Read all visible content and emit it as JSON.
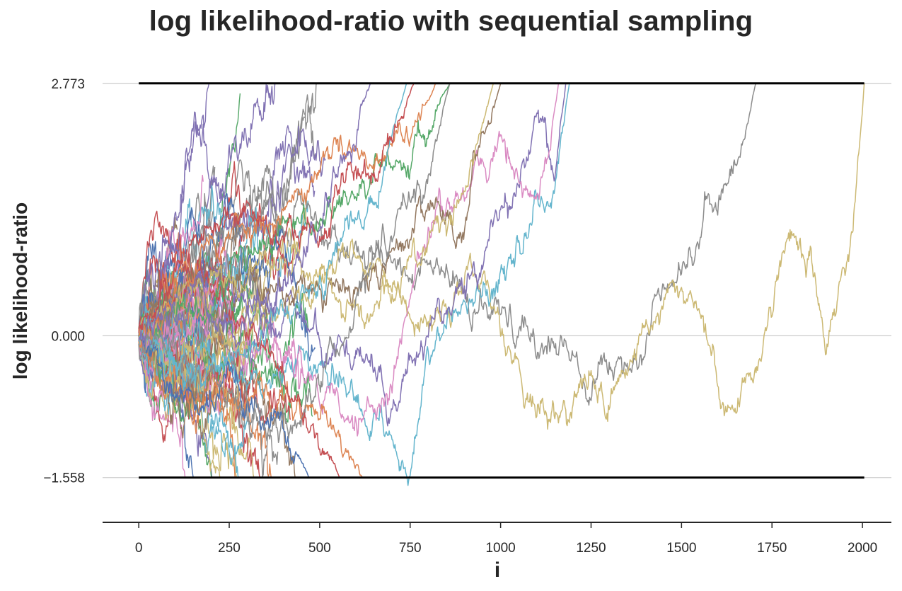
{
  "chart_data": {
    "type": "line",
    "title": "log likelihood-ratio with sequential sampling",
    "xlabel": "i",
    "ylabel": "log likelihood-ratio",
    "xlim": [
      -100,
      2080
    ],
    "ylim": [
      -2.05,
      2.95
    ],
    "x_ticks": [
      0,
      250,
      500,
      750,
      1000,
      1250,
      1500,
      1750,
      2000
    ],
    "x_tick_labels": [
      "0",
      "250",
      "500",
      "750",
      "1000",
      "1250",
      "1500",
      "1750",
      "2000"
    ],
    "y_ticks": [
      -1.558,
      0.0,
      2.773
    ],
    "y_tick_labels": [
      "−1.558",
      "0.000",
      "2.773"
    ],
    "grid": "horizontal",
    "thresholds": {
      "upper": 2.773,
      "lower": -1.558,
      "x_end": 2005,
      "color": "#000000"
    },
    "palette": [
      "#4c72b0",
      "#dd8452",
      "#55a868",
      "#c44e52",
      "#8172b3",
      "#937860",
      "#da8bc3",
      "#8c8c8c",
      "#ccb974",
      "#64b5cd"
    ],
    "series_note": "random-walk paths starting at 0 until crossing a threshold",
    "paths": [
      {
        "color": "#8c8c8c",
        "end_x": 1705,
        "end_y": 2.773,
        "seed": 7,
        "anchors": [
          [
            0,
            0
          ],
          [
            150,
            0.5
          ],
          [
            300,
            1.4
          ],
          [
            450,
            1.3
          ],
          [
            600,
            0.8
          ],
          [
            750,
            0.8
          ],
          [
            900,
            0.4
          ],
          [
            1000,
            0.1
          ],
          [
            1100,
            -0.1
          ],
          [
            1200,
            -0.1
          ],
          [
            1250,
            -0.4
          ],
          [
            1300,
            -0.3
          ],
          [
            1400,
            -0.1
          ],
          [
            1450,
            0.7
          ],
          [
            1500,
            0.9
          ],
          [
            1550,
            1.1
          ],
          [
            1600,
            1.6
          ],
          [
            1650,
            1.8
          ],
          [
            1705,
            2.773
          ]
        ]
      },
      {
        "color": "#ccb974",
        "end_x": 2005,
        "end_y": 2.773,
        "seed": 11,
        "anchors": [
          [
            0,
            0
          ],
          [
            150,
            -0.2
          ],
          [
            300,
            0.2
          ],
          [
            450,
            0.4
          ],
          [
            600,
            0.9
          ],
          [
            700,
            0.6
          ],
          [
            800,
            0.2
          ],
          [
            900,
            0.6
          ],
          [
            1000,
            0.2
          ],
          [
            1100,
            -0.8
          ],
          [
            1150,
            -0.9
          ],
          [
            1200,
            -0.7
          ],
          [
            1250,
            -0.5
          ],
          [
            1300,
            -0.7
          ],
          [
            1400,
            0.1
          ],
          [
            1500,
            0.5
          ],
          [
            1550,
            0.4
          ],
          [
            1600,
            -0.6
          ],
          [
            1650,
            -0.8
          ],
          [
            1700,
            -0.4
          ],
          [
            1800,
            1.2
          ],
          [
            1850,
            0.8
          ],
          [
            1900,
            0.0
          ],
          [
            1950,
            0.8
          ],
          [
            1980,
            1.4
          ],
          [
            2005,
            2.773
          ]
        ]
      },
      {
        "color": "#64b5cd",
        "end_x": 1190,
        "end_y": 2.773,
        "seed": 13,
        "anchors": [
          [
            0,
            0
          ],
          [
            150,
            -0.3
          ],
          [
            300,
            -0.5
          ],
          [
            450,
            -0.2
          ],
          [
            550,
            -0.6
          ],
          [
            650,
            -0.9
          ],
          [
            750,
            -1.5
          ],
          [
            800,
            -0.2
          ],
          [
            900,
            0.3
          ],
          [
            1000,
            0.6
          ],
          [
            1100,
            1.4
          ],
          [
            1150,
            1.8
          ],
          [
            1190,
            2.773
          ]
        ]
      },
      {
        "color": "#8172b3",
        "end_x": 1180,
        "end_y": 2.773,
        "seed": 17,
        "anchors": [
          [
            0,
            0
          ],
          [
            200,
            0.5
          ],
          [
            400,
            0.2
          ],
          [
            600,
            -0.2
          ],
          [
            700,
            -0.8
          ],
          [
            800,
            0.0
          ],
          [
            900,
            0.6
          ],
          [
            1000,
            1.4
          ],
          [
            1050,
            1.5
          ],
          [
            1100,
            2.5
          ],
          [
            1150,
            1.8
          ],
          [
            1180,
            2.773
          ]
        ]
      },
      {
        "color": "#da8bc3",
        "end_x": 1160,
        "end_y": 2.773,
        "seed": 19,
        "anchors": [
          [
            0,
            0
          ],
          [
            200,
            0.3
          ],
          [
            400,
            -0.3
          ],
          [
            600,
            -0.9
          ],
          [
            700,
            -0.6
          ],
          [
            800,
            1.2
          ],
          [
            900,
            1.8
          ],
          [
            1000,
            2.1
          ],
          [
            1100,
            1.4
          ],
          [
            1130,
            1.9
          ],
          [
            1160,
            2.773
          ]
        ]
      },
      {
        "color": "#dd8452",
        "end_x": 620,
        "end_y": -1.558,
        "seed": 23,
        "anchors": [
          [
            0,
            0
          ],
          [
            100,
            -0.6
          ],
          [
            250,
            -0.9
          ],
          [
            400,
            -0.7
          ],
          [
            500,
            -1.0
          ],
          [
            580,
            -1.3
          ],
          [
            620,
            -1.558
          ]
        ]
      },
      {
        "color": "#4c72b0",
        "end_x": 470,
        "end_y": -1.558,
        "seed": 29,
        "anchors": [
          [
            0,
            0
          ],
          [
            100,
            -0.8
          ],
          [
            250,
            -0.5
          ],
          [
            350,
            -0.9
          ],
          [
            420,
            -1.2
          ],
          [
            470,
            -1.558
          ]
        ]
      },
      {
        "color": "#c44e52",
        "end_x": 555,
        "end_y": -1.558,
        "seed": 31,
        "anchors": [
          [
            0,
            0
          ],
          [
            150,
            0.6
          ],
          [
            300,
            0.2
          ],
          [
            400,
            -0.6
          ],
          [
            500,
            -1.1
          ],
          [
            555,
            -1.558
          ]
        ]
      },
      {
        "color": "#937860",
        "end_x": 1000,
        "end_y": 2.773,
        "seed": 37,
        "anchors": [
          [
            0,
            0
          ],
          [
            200,
            0.8
          ],
          [
            400,
            0.5
          ],
          [
            600,
            0.4
          ],
          [
            700,
            0.8
          ],
          [
            800,
            1.5
          ],
          [
            900,
            1.2
          ],
          [
            950,
            2.2
          ],
          [
            1000,
            2.773
          ]
        ]
      },
      {
        "color": "#55a868",
        "end_x": 860,
        "end_y": 2.773,
        "seed": 41,
        "anchors": [
          [
            0,
            0
          ],
          [
            150,
            0.4
          ],
          [
            300,
            0.9
          ],
          [
            450,
            1.2
          ],
          [
            600,
            1.5
          ],
          [
            700,
            1.9
          ],
          [
            800,
            2.3
          ],
          [
            860,
            2.773
          ]
        ]
      },
      {
        "color": "#ccb974",
        "end_x": 980,
        "end_y": 2.773,
        "seed": 43,
        "anchors": [
          [
            0,
            0
          ],
          [
            200,
            0.6
          ],
          [
            400,
            1.0
          ],
          [
            600,
            0.2
          ],
          [
            700,
            0.5
          ],
          [
            800,
            1.0
          ],
          [
            900,
            1.6
          ],
          [
            980,
            2.773
          ]
        ]
      },
      {
        "color": "#8c8c8c",
        "end_x": 860,
        "end_y": 2.773,
        "seed": 47,
        "anchors": [
          [
            0,
            0
          ],
          [
            150,
            -0.4
          ],
          [
            300,
            -0.8
          ],
          [
            400,
            -1.0
          ],
          [
            500,
            -0.6
          ],
          [
            600,
            0.4
          ],
          [
            700,
            1.2
          ],
          [
            800,
            1.8
          ],
          [
            860,
            2.773
          ]
        ]
      },
      {
        "color": "#dd8452",
        "end_x": 820,
        "end_y": 2.773,
        "seed": 53,
        "anchors": [
          [
            0,
            0
          ],
          [
            150,
            0.8
          ],
          [
            300,
            1.2
          ],
          [
            450,
            1.6
          ],
          [
            550,
            2.0
          ],
          [
            650,
            1.8
          ],
          [
            750,
            2.2
          ],
          [
            820,
            2.773
          ]
        ]
      },
      {
        "color": "#64b5cd",
        "end_x": 740,
        "end_y": 2.773,
        "seed": 59,
        "anchors": [
          [
            0,
            0
          ],
          [
            150,
            -0.5
          ],
          [
            300,
            -0.2
          ],
          [
            450,
            0.3
          ],
          [
            550,
            0.9
          ],
          [
            650,
            1.6
          ],
          [
            740,
            2.773
          ]
        ]
      },
      {
        "color": "#c44e52",
        "end_x": 760,
        "end_y": 2.773,
        "seed": 61,
        "anchors": [
          [
            0,
            0
          ],
          [
            150,
            1.0
          ],
          [
            300,
            1.5
          ],
          [
            400,
            1.0
          ],
          [
            500,
            1.3
          ],
          [
            600,
            1.8
          ],
          [
            700,
            2.1
          ],
          [
            760,
            2.773
          ]
        ]
      },
      {
        "color": "#8172b3",
        "end_x": 640,
        "end_y": 2.773,
        "seed": 67,
        "anchors": [
          [
            0,
            0
          ],
          [
            150,
            0.3
          ],
          [
            300,
            0.0
          ],
          [
            400,
            0.5
          ],
          [
            500,
            1.2
          ],
          [
            600,
            2.0
          ],
          [
            640,
            2.773
          ]
        ]
      }
    ],
    "clutter": {
      "count": 70,
      "seed": 101,
      "x_min": 80,
      "x_max": 520,
      "step_sd": 0.09
    }
  }
}
